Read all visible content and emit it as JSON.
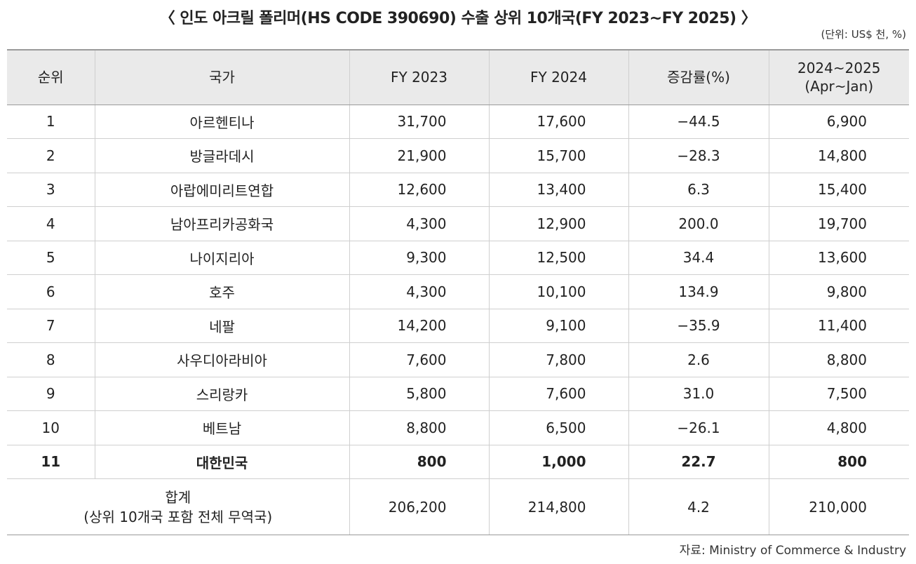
{
  "title": "〈 인도 아크릴 폴리머(HS CODE 390690) 수출 상위 10개국(FY 2023~FY 2025) 〉",
  "unit": "(단위: US$ 천, %)",
  "table": {
    "headers": {
      "rank": "순위",
      "country": "국가",
      "fy2023": "FY 2023",
      "fy2024": "FY 2024",
      "change": "증감률(%)",
      "period_line1": "2024~2025",
      "period_line2": "(Apr~Jan)"
    },
    "rows": [
      {
        "rank": "1",
        "country": "아르헨티나",
        "fy2023": "31,700",
        "fy2024": "17,600",
        "change": "−44.5",
        "period": "6,900"
      },
      {
        "rank": "2",
        "country": "방글라데시",
        "fy2023": "21,900",
        "fy2024": "15,700",
        "change": "−28.3",
        "period": "14,800"
      },
      {
        "rank": "3",
        "country": "아랍에미리트연합",
        "fy2023": "12,600",
        "fy2024": "13,400",
        "change": "6.3",
        "period": "15,400"
      },
      {
        "rank": "4",
        "country": "남아프리카공화국",
        "fy2023": "4,300",
        "fy2024": "12,900",
        "change": "200.0",
        "period": "19,700"
      },
      {
        "rank": "5",
        "country": "나이지리아",
        "fy2023": "9,300",
        "fy2024": "12,500",
        "change": "34.4",
        "period": "13,600"
      },
      {
        "rank": "6",
        "country": "호주",
        "fy2023": "4,300",
        "fy2024": "10,100",
        "change": "134.9",
        "period": "9,800"
      },
      {
        "rank": "7",
        "country": "네팔",
        "fy2023": "14,200",
        "fy2024": "9,100",
        "change": "−35.9",
        "period": "11,400"
      },
      {
        "rank": "8",
        "country": "사우디아라비아",
        "fy2023": "7,600",
        "fy2024": "7,800",
        "change": "2.6",
        "period": "8,800"
      },
      {
        "rank": "9",
        "country": "스리랑카",
        "fy2023": "5,800",
        "fy2024": "7,600",
        "change": "31.0",
        "period": "7,500"
      },
      {
        "rank": "10",
        "country": "베트남",
        "fy2023": "8,800",
        "fy2024": "6,500",
        "change": "−26.1",
        "period": "4,800"
      },
      {
        "rank": "11",
        "country": "대한민국",
        "fy2023": "800",
        "fy2024": "1,000",
        "change": "22.7",
        "period": "800"
      }
    ],
    "total": {
      "label_line1": "합계",
      "label_line2": "(상위 10개국 포함 전체 무역국)",
      "fy2023": "206,200",
      "fy2024": "214,800",
      "change": "4.2",
      "period": "210,000"
    }
  },
  "source": "자료: Ministry of Commerce & Industry"
}
